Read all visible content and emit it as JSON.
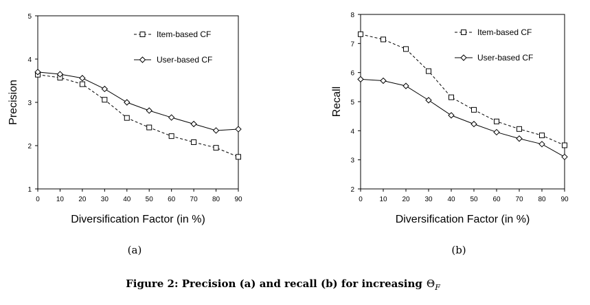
{
  "figure": {
    "caption_prefix": "Figure 2: Precision (a) and recall (b) for increasing",
    "caption_symbol": "Θ",
    "caption_subscript": "F"
  },
  "chart_data": [
    {
      "type": "line",
      "panel_label": "(a)",
      "title": "",
      "xlabel": "Diversification Factor (in %)",
      "ylabel": "Precision",
      "x": [
        0,
        10,
        20,
        30,
        40,
        50,
        60,
        70,
        80,
        90
      ],
      "xlim": [
        0,
        90
      ],
      "ylim": [
        1,
        5
      ],
      "xticks": [
        0,
        10,
        20,
        30,
        40,
        50,
        60,
        70,
        80,
        90
      ],
      "yticks": [
        1,
        2,
        3,
        4,
        5
      ],
      "grid": false,
      "legend_position": "top-right",
      "series": [
        {
          "name": "Item-based CF",
          "marker": "square",
          "line": "dashed",
          "values": [
            3.64,
            3.57,
            3.42,
            3.06,
            2.64,
            2.42,
            2.22,
            2.08,
            1.95,
            1.74
          ]
        },
        {
          "name": "User-based CF",
          "marker": "diamond",
          "line": "solid",
          "values": [
            3.7,
            3.65,
            3.56,
            3.31,
            3.0,
            2.81,
            2.65,
            2.5,
            2.35,
            2.38
          ]
        }
      ]
    },
    {
      "type": "line",
      "panel_label": "(b)",
      "title": "",
      "xlabel": "Diversification Factor (in %)",
      "ylabel": "Recall",
      "x": [
        0,
        10,
        20,
        30,
        40,
        50,
        60,
        70,
        80,
        90
      ],
      "xlim": [
        0,
        90
      ],
      "ylim": [
        2,
        8
      ],
      "xticks": [
        0,
        10,
        20,
        30,
        40,
        50,
        60,
        70,
        80,
        90
      ],
      "yticks": [
        2,
        3,
        4,
        5,
        6,
        7,
        8
      ],
      "grid": false,
      "legend_position": "top-right",
      "series": [
        {
          "name": "Item-based CF",
          "marker": "square",
          "line": "dashed",
          "values": [
            7.32,
            7.14,
            6.81,
            6.05,
            5.15,
            4.72,
            4.32,
            4.06,
            3.84,
            3.5
          ]
        },
        {
          "name": "User-based CF",
          "marker": "diamond",
          "line": "solid",
          "values": [
            5.77,
            5.72,
            5.54,
            5.05,
            4.53,
            4.23,
            3.95,
            3.73,
            3.54,
            3.1
          ]
        }
      ]
    }
  ]
}
